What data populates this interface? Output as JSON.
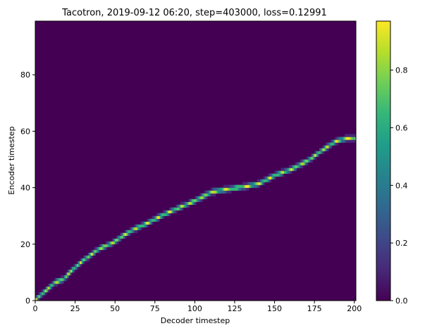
{
  "chart_data": {
    "type": "heatmap",
    "title": "Tacotron, 2019-09-12 06:20, step=403000, loss=0.12991",
    "xlabel": "Decoder timestep",
    "ylabel": "Encoder timestep",
    "xlim": [
      0,
      201
    ],
    "ylim": [
      0,
      99
    ],
    "x_ticks": [
      0,
      25,
      50,
      75,
      100,
      125,
      150,
      175,
      200
    ],
    "y_ticks": [
      0,
      20,
      40,
      60,
      80
    ],
    "colormap": "viridis",
    "colorbar": {
      "range": [
        0,
        0.97
      ],
      "ticks": [
        0.0,
        0.2,
        0.4,
        0.6,
        0.8
      ]
    },
    "background_value": 0.0,
    "alignment_path": {
      "description": "peak attention per decoder step (monotonic diagonal)",
      "points": [
        [
          0,
          0
        ],
        [
          6,
          3
        ],
        [
          12,
          6
        ],
        [
          17,
          7
        ],
        [
          22,
          10
        ],
        [
          30,
          14
        ],
        [
          40,
          18
        ],
        [
          48,
          20
        ],
        [
          56,
          23
        ],
        [
          62,
          25
        ],
        [
          70,
          27
        ],
        [
          80,
          30
        ],
        [
          88,
          32
        ],
        [
          100,
          35
        ],
        [
          110,
          38
        ],
        [
          120,
          39
        ],
        [
          132,
          40
        ],
        [
          140,
          41
        ],
        [
          150,
          44
        ],
        [
          160,
          46
        ],
        [
          170,
          49
        ],
        [
          180,
          53
        ],
        [
          188,
          56
        ],
        [
          195,
          57
        ],
        [
          200,
          57
        ]
      ],
      "peak_value": 0.95
    }
  },
  "colors": {
    "viridis": [
      "#440154",
      "#482878",
      "#3e4989",
      "#31688e",
      "#26828e",
      "#1f9e89",
      "#35b779",
      "#6ece58",
      "#b5de2b",
      "#fde725"
    ]
  }
}
